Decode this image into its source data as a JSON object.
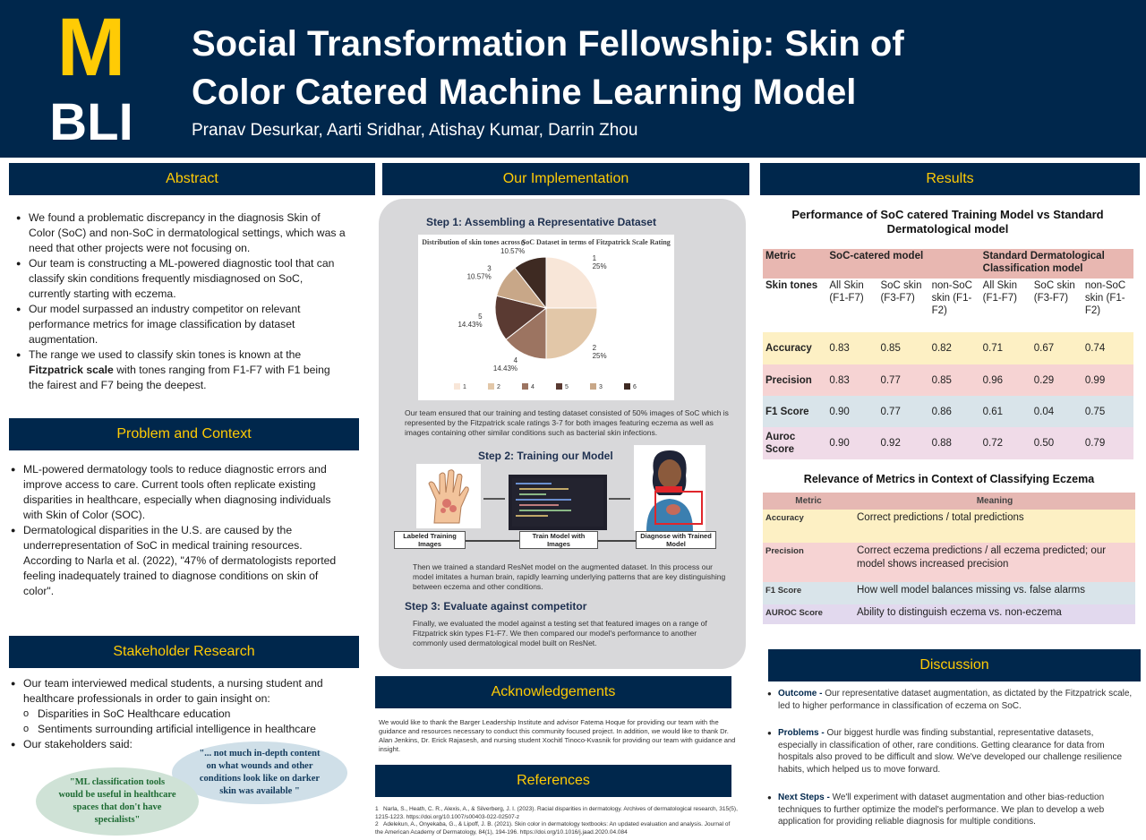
{
  "header": {
    "logo_top": "M",
    "logo_bottom": "BLI",
    "title_line1": "Social Transformation Fellowship: Skin of",
    "title_line2": "Color Catered Machine Learning Model",
    "authors": "Pranav Desurkar, Aarti Sridhar, Atishay Kumar, Darrin Zhou"
  },
  "colors": {
    "navy": "#00274c",
    "maize": "#ffcb05"
  },
  "abstract": {
    "heading": "Abstract",
    "items": [
      "We found a problematic discrepancy in the diagnosis Skin of Color (SoC) and non-SoC in dermatological settings, which was a need that other projects were not focusing on.",
      "Our team is constructing a ML-powered diagnostic tool that can classify skin conditions frequently misdiagnosed on SoC, currently starting with eczema.",
      "Our model surpassed an industry competitor on relevant performance metrics for image classification by dataset augmentation.",
      "The range we used to classify skin tones is known at the Fitzpatrick scale with tones ranging from F1-F7 with F1 being the fairest and F7 being the deepest."
    ],
    "bold_term": "Fitzpatrick scale"
  },
  "problem": {
    "heading": "Problem and Context",
    "items": [
      "ML-powered dermatology tools to reduce diagnostic errors and improve access to care. Current tools often replicate existing disparities in healthcare, especially when diagnosing individuals with Skin of Color (SOC).",
      "Dermatological disparities in the U.S. are caused by the underrepresentation of SoC in medical training resources. According to Narla et al. (2022), \"47% of dermatologists reported feeling inadequately trained to diagnose conditions on skin of color\"."
    ]
  },
  "stakeholder": {
    "heading": "Stakeholder Research",
    "item1": "Our team interviewed medical students, a nursing student and healthcare professionals in order to gain insight on:",
    "sub": [
      "Disparities in SoC Healthcare education",
      "Sentiments surrounding artificial intelligence in healthcare"
    ],
    "item2": "Our stakeholders said:",
    "quote1": "\"ML classification tools would be useful in healthcare spaces that don't have specialists\"",
    "quote2": "\"... not much in-depth content on what wounds and other conditions look like on darker skin was available \""
  },
  "implementation": {
    "heading": "Our Implementation",
    "step1_title": "Step 1: Assembling a Representative Dataset",
    "step1_text": "Our team ensured that our training and testing dataset consisted of 50% images of SoC which is represented by the Fitzpatrick scale ratings 3-7 for both images featuring eczema as well as images containing other similar conditions such as bacterial skin infections.",
    "step2_title": "Step 2: Training our Model",
    "step2_text": "Then we trained a standard ResNet model on the augmented dataset. In this process our model imitates a human brain, rapidly learning underlying patterns that are key distinguishing between eczema and other conditions.",
    "pipeline": [
      "Labeled Training Images",
      "Train Model with Images",
      "Diagnose with Trained Model"
    ],
    "step3_title": "Step 3: Evaluate against competitor",
    "step3_text": "Finally, we evaluated the model against a testing set that featured images on a range of Fitzpatrick skin types F1-F7. We then compared our model's performance to another commonly used dermatological model built on ResNet."
  },
  "chart_data": {
    "type": "pie",
    "title": "Distribution of skin tones across SoC Dataset in terms of Fitzpatrick Scale Rating",
    "categories": [
      "1",
      "2",
      "4",
      "5",
      "3",
      "6"
    ],
    "values": [
      25,
      25,
      14.43,
      14.43,
      10.57,
      10.57
    ],
    "value_labels": [
      "25%",
      "25%",
      "14.43%",
      "14.43%",
      "10.57%",
      "10.57%"
    ],
    "colors": [
      "#f8e6d8",
      "#e2c7a8",
      "#9c7461",
      "#5a3a32",
      "#c8a788",
      "#3e2a22"
    ],
    "legend": "bottom"
  },
  "acknowledgements": {
    "heading": "Acknowledgements",
    "text": "We would like to thank the Barger Leadership Institute and advisor Fatema Hoque for providing our team with the guidance and resources necessary to conduct this community focused project. In addition, we would like to thank Dr. Alan Jenkins, Dr. Erick Rajasesh, and nursing student Xochitl Tinoco-Kvasnik for providing our team with guidance and insight."
  },
  "references": {
    "heading": "References",
    "items": [
      "Narla, S., Heath, C. R., Alexis, A., & Silverberg, J. I. (2023). Racial disparities in dermatology. Archives of dermatological research, 315(5), 1215-1223. https://doi.org/10.1007/s00403-022-02507-z",
      "Adelekun, A., Onyekaba, G., & Lipoff, J. B. (2021). Skin color in dermatology textbooks: An updated evaluation and analysis. Journal of the American Academy of Dermatology, 84(1), 194-196. https://doi.org/10.1016/j.jaad.2020.04.084"
    ]
  },
  "results": {
    "heading": "Results",
    "table_title": "Performance of SoC catered Training Model vs Standard Dermatological model",
    "col_metric": "Metric",
    "group1": "SoC-catered model",
    "group2": "Standard Dermatological Classification model",
    "skin_label": "Skin tones",
    "subcols": [
      "All Skin (F1-F7)",
      "SoC skin (F3-F7)",
      "non-SoC skin (F1-F2)",
      "All Skin (F1-F7)",
      "SoC skin (F3-F7)",
      "non-SoC skin (F1-F2)"
    ],
    "rows": [
      {
        "metric": "Accuracy",
        "values": [
          "0.83",
          "0.85",
          "0.82",
          "0.71",
          "0.67",
          "0.74"
        ]
      },
      {
        "metric": "Precision",
        "values": [
          "0.83",
          "0.77",
          "0.85",
          "0.96",
          "0.29",
          "0.99"
        ]
      },
      {
        "metric": "F1 Score",
        "values": [
          "0.90",
          "0.77",
          "0.86",
          "0.61",
          "0.04",
          "0.75"
        ]
      },
      {
        "metric": "Auroc Score",
        "values": [
          "0.90",
          "0.92",
          "0.88",
          "0.72",
          "0.50",
          "0.79"
        ]
      }
    ]
  },
  "relevance": {
    "title": "Relevance of Metrics in Context of Classifying Eczema",
    "col1": "Metric",
    "col2": "Meaning",
    "rows": [
      {
        "metric": "Accuracy",
        "meaning": "Correct predictions / total predictions"
      },
      {
        "metric": "Precision",
        "meaning": "Correct eczema predictions / all eczema predicted; our model shows increased precision"
      },
      {
        "metric": "F1 Score",
        "meaning": "How well model balances missing vs. false alarms"
      },
      {
        "metric": "AUROC Score",
        "meaning": "Ability to distinguish eczema vs. non-eczema"
      }
    ]
  },
  "discussion": {
    "heading": "Discussion",
    "items": [
      {
        "label": "Outcome - ",
        "text": "Our representative dataset augmentation, as dictated by the Fitzpatrick scale, led to higher performance in classification of eczema on SoC."
      },
      {
        "label": "Problems - ",
        "text": "Our biggest hurdle was finding substantial, representative datasets, especially in classification of other, rare conditions. Getting clearance for data from hospitals also proved to be difficult and slow. We've developed our challenge resilience habits, which helped us to move forward."
      },
      {
        "label": "Next Steps - ",
        "text": "We'll experiment with dataset augmentation and other bias-reduction techniques to further optimize the model's performance. We plan to develop a web application for providing reliable diagnosis for multiple conditions."
      }
    ]
  }
}
